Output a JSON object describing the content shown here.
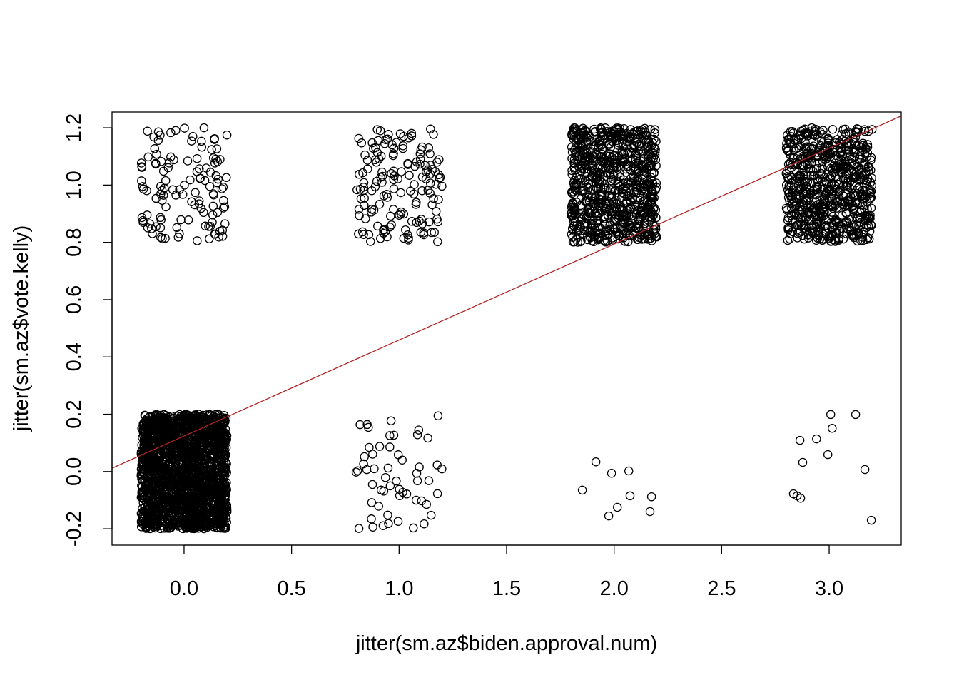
{
  "chart_data": {
    "type": "scatter",
    "title": "",
    "xlabel": "jitter(sm.az$biden.approval.num)",
    "ylabel": "jitter(sm.az$vote.kelly)",
    "xlim": [
      -0.335,
      3.335
    ],
    "ylim": [
      -0.257,
      1.255
    ],
    "xticks": [
      0.0,
      0.5,
      1.0,
      1.5,
      2.0,
      2.5,
      3.0
    ],
    "xtick_labels": [
      "0.0",
      "0.5",
      "1.0",
      "1.5",
      "2.0",
      "2.5",
      "3.0"
    ],
    "yticks": [
      -0.2,
      0.0,
      0.2,
      0.4,
      0.6,
      0.8,
      1.0,
      1.2
    ],
    "ytick_labels": [
      "-0.2",
      "0.0",
      "0.2",
      "0.4",
      "0.6",
      "0.8",
      "1.0",
      "1.2"
    ],
    "grid": false,
    "jitter_amount": 0.2,
    "clusters": [
      {
        "x": 0,
        "y": 0,
        "approx_count": 2000
      },
      {
        "x": 0,
        "y": 1,
        "approx_count": 120
      },
      {
        "x": 1,
        "y": 0,
        "approx_count": 55
      },
      {
        "x": 1,
        "y": 1,
        "approx_count": 150
      },
      {
        "x": 2,
        "y": 1,
        "approx_count": 800
      },
      {
        "x": 3,
        "y": 1,
        "approx_count": 700
      }
    ],
    "points": [
      [
        1.915,
        0.034
      ],
      [
        1.988,
        -0.006
      ],
      [
        2.068,
        0.002
      ],
      [
        1.852,
        -0.065
      ],
      [
        2.074,
        -0.085
      ],
      [
        2.174,
        -0.088
      ],
      [
        2.015,
        -0.125
      ],
      [
        1.975,
        -0.155
      ],
      [
        2.167,
        -0.14
      ],
      [
        3.007,
        0.199
      ],
      [
        3.123,
        0.199
      ],
      [
        3.014,
        0.151
      ],
      [
        2.864,
        0.109
      ],
      [
        2.941,
        0.114
      ],
      [
        2.994,
        0.059
      ],
      [
        2.877,
        0.032
      ],
      [
        3.166,
        0.007
      ],
      [
        2.834,
        -0.078
      ],
      [
        2.851,
        -0.085
      ],
      [
        2.867,
        -0.093
      ],
      [
        3.196,
        -0.17
      ]
    ],
    "regression_line": {
      "intercept": 0.124,
      "slope": 0.335,
      "color": "#B22222"
    },
    "point_color": "#000000"
  }
}
